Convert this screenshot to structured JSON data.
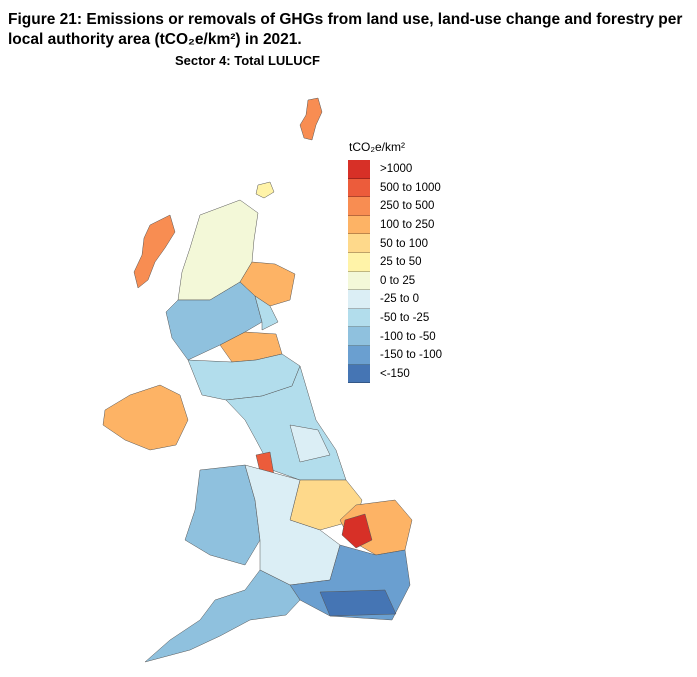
{
  "figure": {
    "title": "Figure 21: Emissions or removals of GHGs from land use, land-use change and forestry per local authority area (tCO₂e/km²) in 2021.",
    "subtitle": "Sector 4: Total LULUCF"
  },
  "legend": {
    "title": "tCO₂e/km²",
    "items": [
      {
        "label": ">1000",
        "color": "#d73027"
      },
      {
        "label": "500 to 1000",
        "color": "#ec5c3b"
      },
      {
        "label": "250 to 500",
        "color": "#f88d52"
      },
      {
        "label": "100 to 250",
        "color": "#fdb365"
      },
      {
        "label": "50 to 100",
        "color": "#fed98b"
      },
      {
        "label": "25 to 50",
        "color": "#fff3a8"
      },
      {
        "label": "0 to 25",
        "color": "#f3f8d8"
      },
      {
        "label": "-25 to 0",
        "color": "#dbeef5"
      },
      {
        "label": "-50 to -25",
        "color": "#b2ddec"
      },
      {
        "label": "-100 to -50",
        "color": "#8fc1de"
      },
      {
        "label": "-150 to -100",
        "color": "#6a9fd0"
      },
      {
        "label": "<-150",
        "color": "#4575b4"
      }
    ]
  }
}
